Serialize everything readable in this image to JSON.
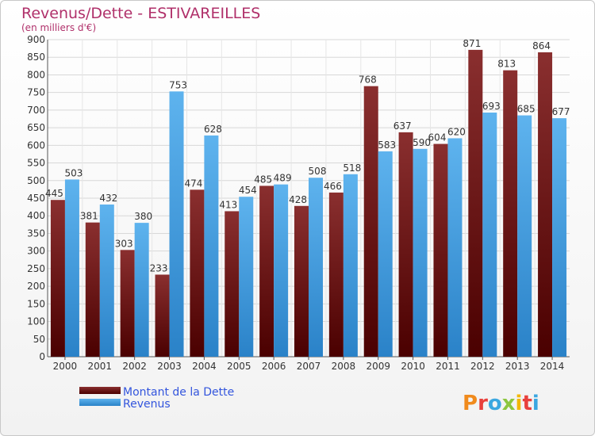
{
  "title": "Revenus/Dette - ESTIVAREILLES",
  "subtitle": "(en milliers d'€)",
  "logo": {
    "text": "Proxiti",
    "colors": [
      "#f08a1c",
      "#e8403c",
      "#3ba7e0",
      "#8cc63f",
      "#f2b705",
      "#e8403c",
      "#3ba7e0"
    ]
  },
  "colors": {
    "dette": "#6e1a1a",
    "revenus": "#3c9be0",
    "title": "#b0306a",
    "legend_text": "#3355dd"
  },
  "chart_data": {
    "type": "bar",
    "title": "Revenus/Dette - ESTIVAREILLES",
    "subtitle": "(en milliers d'€)",
    "categories": [
      "2000",
      "2001",
      "2002",
      "2003",
      "2004",
      "2005",
      "2006",
      "2007",
      "2008",
      "2009",
      "2010",
      "2011",
      "2012",
      "2013",
      "2014"
    ],
    "series": [
      {
        "name": "Montant de la Dette",
        "values": [
          445,
          381,
          303,
          233,
          474,
          413,
          485,
          428,
          466,
          768,
          637,
          604,
          871,
          813,
          864
        ]
      },
      {
        "name": "Revenus",
        "values": [
          503,
          432,
          380,
          753,
          628,
          454,
          489,
          508,
          518,
          583,
          590,
          620,
          693,
          685,
          677
        ]
      }
    ],
    "yticks": [
      0,
      50,
      100,
      150,
      200,
      250,
      300,
      350,
      400,
      450,
      500,
      550,
      600,
      650,
      700,
      750,
      800,
      850,
      900
    ],
    "ylim": [
      0,
      900
    ],
    "grid": true,
    "legend_position": "bottom-left"
  }
}
